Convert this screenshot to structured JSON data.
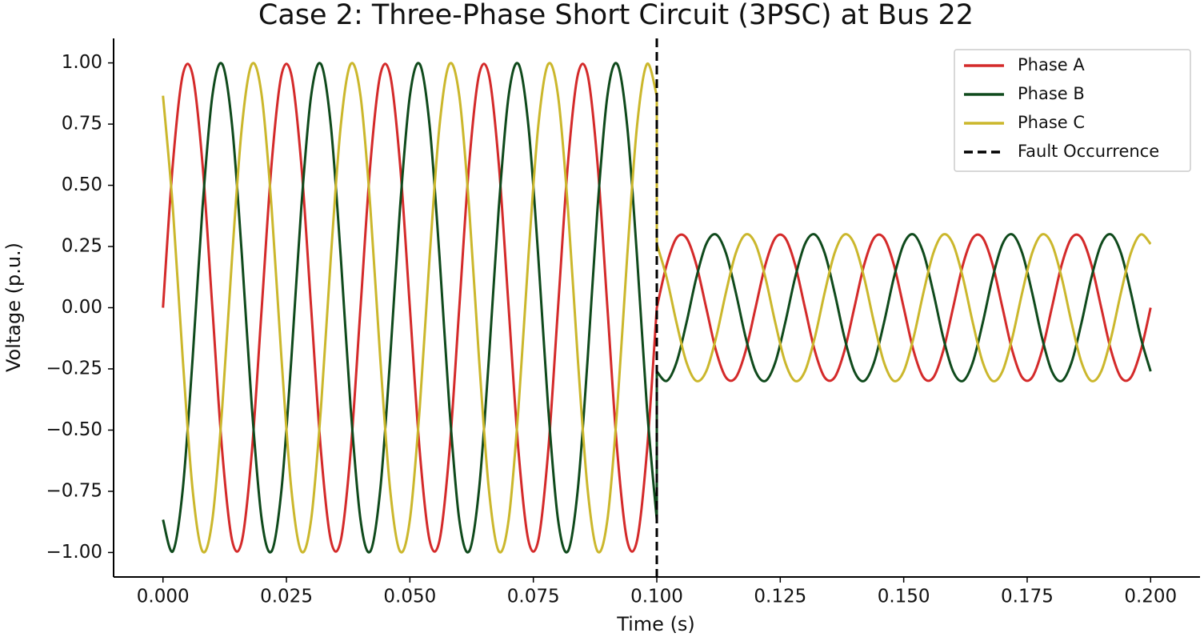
{
  "chart_data": {
    "type": "line",
    "title": "Case 2: Three-Phase Short Circuit (3PSC) at Bus 22",
    "x_label": "Time (s)",
    "y_label": "Voltage (p.u.)",
    "x": [
      0,
      0.002,
      0.004,
      0.006,
      0.008,
      0.01,
      0.012,
      0.014,
      0.016,
      0.018,
      0.02,
      0.022,
      0.024,
      0.026,
      0.028,
      0.03,
      0.032,
      0.034,
      0.036,
      0.038,
      0.04,
      0.042,
      0.044,
      0.046,
      0.048,
      0.05,
      0.052,
      0.054,
      0.056,
      0.058,
      0.06,
      0.062,
      0.064,
      0.066,
      0.068,
      0.07,
      0.072,
      0.074,
      0.076,
      0.078,
      0.08,
      0.082,
      0.084,
      0.086,
      0.088,
      0.09,
      0.092,
      0.094,
      0.096,
      0.098,
      0.1,
      0.1,
      0.102,
      0.104,
      0.106,
      0.108,
      0.11,
      0.112,
      0.114,
      0.116,
      0.118,
      0.12,
      0.122,
      0.124,
      0.126,
      0.128,
      0.13,
      0.132,
      0.134,
      0.136,
      0.138,
      0.14,
      0.142,
      0.144,
      0.146,
      0.148,
      0.15,
      0.152,
      0.154,
      0.156,
      0.158,
      0.16,
      0.162,
      0.164,
      0.166,
      0.168,
      0.17,
      0.172,
      0.174,
      0.176,
      0.178,
      0.18,
      0.182,
      0.184,
      0.186,
      0.188,
      0.19,
      0.192,
      0.194,
      0.196,
      0.198,
      0.2
    ],
    "series": [
      {
        "name": "Phase A",
        "color": "#d42a2a",
        "values": [
          0,
          0.588,
          0.951,
          0.951,
          0.588,
          0,
          -0.588,
          -0.951,
          -0.951,
          -0.588,
          0,
          0.588,
          0.951,
          0.951,
          0.588,
          0,
          -0.588,
          -0.951,
          -0.951,
          -0.588,
          0,
          0.588,
          0.951,
          0.951,
          0.588,
          0,
          -0.588,
          -0.951,
          -0.951,
          -0.588,
          0,
          0.588,
          0.951,
          0.951,
          0.588,
          0,
          -0.588,
          -0.951,
          -0.951,
          -0.588,
          0,
          0.588,
          0.951,
          0.951,
          0.588,
          0,
          -0.588,
          -0.951,
          -0.951,
          -0.588,
          0,
          0,
          0.176,
          0.285,
          0.285,
          0.176,
          0,
          -0.176,
          -0.285,
          -0.285,
          -0.176,
          0,
          0.176,
          0.285,
          0.285,
          0.176,
          0,
          -0.176,
          -0.285,
          -0.285,
          -0.176,
          0,
          0.176,
          0.285,
          0.285,
          0.176,
          0,
          -0.176,
          -0.285,
          -0.285,
          -0.176,
          0,
          0.176,
          0.285,
          0.285,
          0.176,
          0,
          -0.176,
          -0.285,
          -0.285,
          -0.176,
          0,
          0.176,
          0.285,
          0.285,
          0.176,
          0,
          -0.176,
          -0.285,
          -0.285,
          -0.176,
          0
        ]
      },
      {
        "name": "Phase B",
        "color": "#0f4a1c",
        "values": [
          -0.866,
          -0.995,
          -0.743,
          -0.208,
          0.407,
          0.866,
          0.995,
          0.743,
          0.208,
          -0.407,
          -0.866,
          -0.995,
          -0.743,
          -0.208,
          0.407,
          0.866,
          0.995,
          0.743,
          0.208,
          -0.407,
          -0.866,
          -0.995,
          -0.743,
          -0.208,
          0.407,
          0.866,
          0.995,
          0.743,
          0.208,
          -0.407,
          -0.866,
          -0.995,
          -0.743,
          -0.208,
          0.407,
          0.866,
          0.995,
          0.743,
          0.208,
          -0.407,
          -0.866,
          -0.995,
          -0.743,
          -0.208,
          0.407,
          0.866,
          0.995,
          0.743,
          0.208,
          -0.407,
          -0.866,
          -0.26,
          -0.299,
          -0.223,
          -0.062,
          0.122,
          0.26,
          0.299,
          0.223,
          0.062,
          -0.122,
          -0.26,
          -0.299,
          -0.223,
          -0.062,
          0.122,
          0.26,
          0.299,
          0.223,
          0.062,
          -0.122,
          -0.26,
          -0.299,
          -0.223,
          -0.062,
          0.122,
          0.26,
          0.299,
          0.223,
          0.062,
          -0.122,
          -0.26,
          -0.299,
          -0.223,
          -0.062,
          0.122,
          0.26,
          0.299,
          0.223,
          0.062,
          -0.122,
          -0.26,
          -0.299,
          -0.223,
          -0.062,
          0.122,
          0.26,
          0.299,
          0.223,
          0.062,
          -0.122,
          -0.26
        ]
      },
      {
        "name": "Phase C",
        "color": "#cbb72c",
        "values": [
          0.866,
          0.407,
          -0.208,
          -0.743,
          -0.995,
          -0.866,
          -0.407,
          0.208,
          0.743,
          0.995,
          0.866,
          0.407,
          -0.208,
          -0.743,
          -0.995,
          -0.866,
          -0.407,
          0.208,
          0.743,
          0.995,
          0.866,
          0.407,
          -0.208,
          -0.743,
          -0.995,
          -0.866,
          -0.407,
          0.208,
          0.743,
          0.995,
          0.866,
          0.407,
          -0.208,
          -0.743,
          -0.995,
          -0.866,
          -0.407,
          0.208,
          0.743,
          0.995,
          0.866,
          0.407,
          -0.208,
          -0.743,
          -0.995,
          -0.866,
          -0.407,
          0.208,
          0.743,
          0.995,
          0.866,
          0.26,
          0.122,
          -0.062,
          -0.223,
          -0.299,
          -0.26,
          -0.122,
          0.062,
          0.223,
          0.299,
          0.26,
          0.122,
          -0.062,
          -0.223,
          -0.299,
          -0.26,
          -0.122,
          0.062,
          0.223,
          0.299,
          0.26,
          0.122,
          -0.062,
          -0.223,
          -0.299,
          -0.26,
          -0.122,
          0.062,
          0.223,
          0.299,
          0.26,
          0.122,
          -0.062,
          -0.223,
          -0.299,
          -0.26,
          -0.122,
          0.062,
          0.223,
          0.299,
          0.26,
          0.122,
          -0.062,
          -0.223,
          -0.299,
          -0.26,
          -0.122,
          0.062,
          0.223,
          0.299,
          0.26
        ]
      }
    ],
    "fault_line": {
      "name": "Fault Occurrence",
      "x": 0.1,
      "color": "#000000"
    },
    "xlim": [
      -0.01,
      0.21
    ],
    "ylim": [
      -1.1,
      1.1
    ],
    "xticks": [
      {
        "value": 0,
        "label": "0.000"
      },
      {
        "value": 0.025,
        "label": "0.025"
      },
      {
        "value": 0.05,
        "label": "0.050"
      },
      {
        "value": 0.075,
        "label": "0.075"
      },
      {
        "value": 0.1,
        "label": "0.100"
      },
      {
        "value": 0.125,
        "label": "0.125"
      },
      {
        "value": 0.15,
        "label": "0.150"
      },
      {
        "value": 0.175,
        "label": "0.175"
      },
      {
        "value": 0.2,
        "label": "0.200"
      }
    ],
    "yticks": [
      {
        "value": -1,
        "label": "−1.00"
      },
      {
        "value": -0.75,
        "label": "−0.75"
      },
      {
        "value": -0.5,
        "label": "−0.50"
      },
      {
        "value": -0.25,
        "label": "−0.25"
      },
      {
        "value": 0,
        "label": "0.00"
      },
      {
        "value": 0.25,
        "label": "0.25"
      },
      {
        "value": 0.5,
        "label": "0.50"
      },
      {
        "value": 0.75,
        "label": "0.75"
      },
      {
        "value": 1,
        "label": "1.00"
      }
    ],
    "grid": false,
    "legend": "upper right"
  }
}
